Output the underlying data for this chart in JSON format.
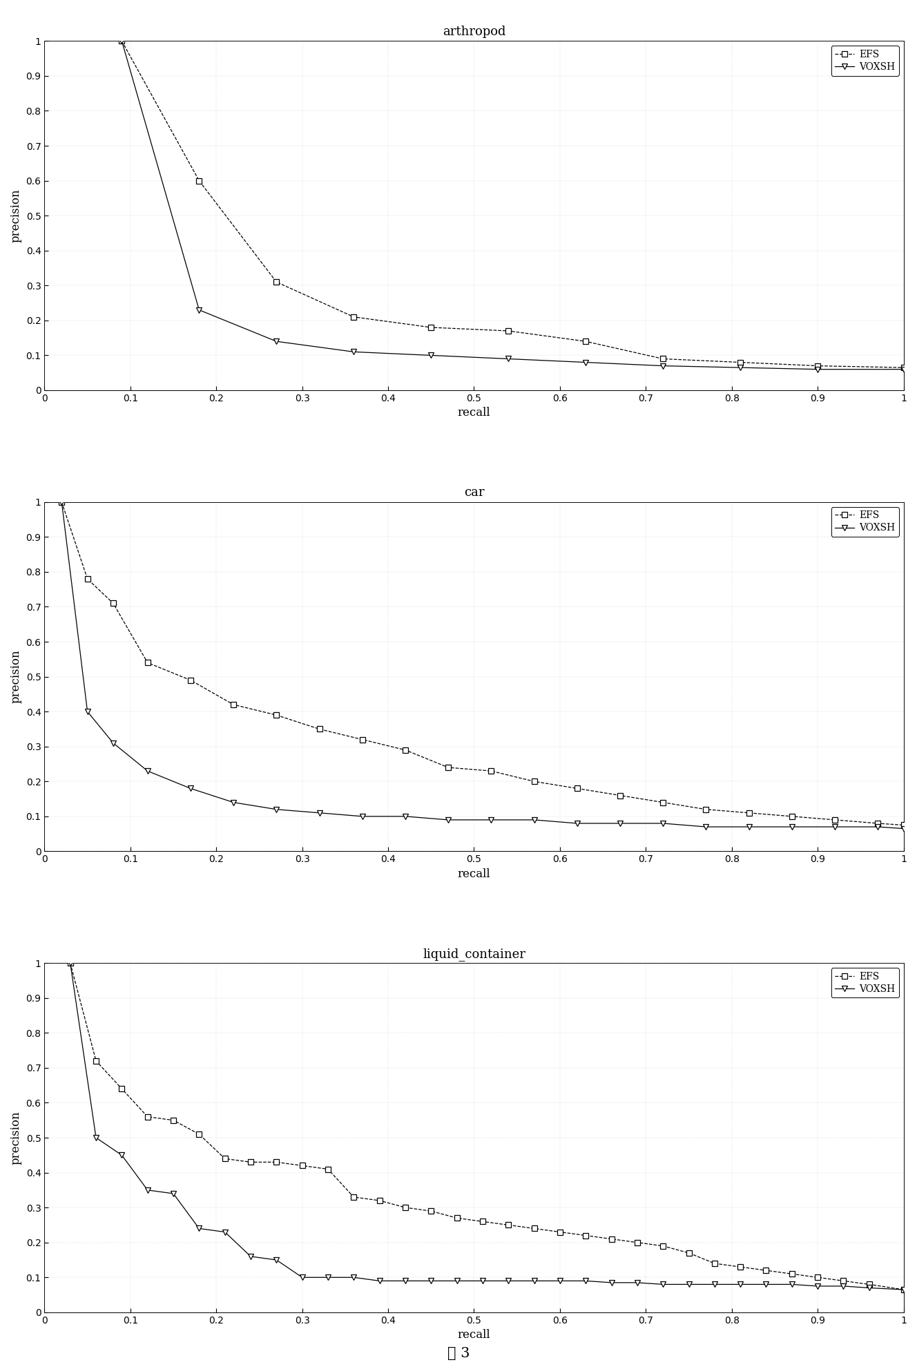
{
  "charts": [
    {
      "title": "arthropod",
      "EFS_x": [
        0.09,
        0.18,
        0.27,
        0.36,
        0.45,
        0.54,
        0.63,
        0.72,
        0.81,
        0.9,
        1.0
      ],
      "EFS_y": [
        1.0,
        0.6,
        0.31,
        0.21,
        0.18,
        0.17,
        0.14,
        0.09,
        0.08,
        0.07,
        0.065
      ],
      "VOXSH_x": [
        0.09,
        0.18,
        0.27,
        0.36,
        0.45,
        0.54,
        0.63,
        0.72,
        0.81,
        0.9,
        1.0
      ],
      "VOXSH_y": [
        1.0,
        0.23,
        0.14,
        0.11,
        0.1,
        0.09,
        0.08,
        0.07,
        0.065,
        0.06,
        0.06
      ]
    },
    {
      "title": "car",
      "EFS_x": [
        0.02,
        0.05,
        0.08,
        0.12,
        0.17,
        0.22,
        0.27,
        0.32,
        0.37,
        0.42,
        0.47,
        0.52,
        0.57,
        0.62,
        0.67,
        0.72,
        0.77,
        0.82,
        0.87,
        0.92,
        0.97,
        1.0
      ],
      "EFS_y": [
        1.0,
        0.78,
        0.71,
        0.54,
        0.49,
        0.42,
        0.39,
        0.35,
        0.32,
        0.29,
        0.24,
        0.23,
        0.2,
        0.18,
        0.16,
        0.14,
        0.12,
        0.11,
        0.1,
        0.09,
        0.08,
        0.075
      ],
      "VOXSH_x": [
        0.02,
        0.05,
        0.08,
        0.12,
        0.17,
        0.22,
        0.27,
        0.32,
        0.37,
        0.42,
        0.47,
        0.52,
        0.57,
        0.62,
        0.67,
        0.72,
        0.77,
        0.82,
        0.87,
        0.92,
        0.97,
        1.0
      ],
      "VOXSH_y": [
        1.0,
        0.4,
        0.31,
        0.23,
        0.18,
        0.14,
        0.12,
        0.11,
        0.1,
        0.1,
        0.09,
        0.09,
        0.09,
        0.08,
        0.08,
        0.08,
        0.07,
        0.07,
        0.07,
        0.07,
        0.07,
        0.065
      ]
    },
    {
      "title": "liquid_container",
      "EFS_x": [
        0.03,
        0.06,
        0.09,
        0.12,
        0.15,
        0.18,
        0.21,
        0.24,
        0.27,
        0.3,
        0.33,
        0.36,
        0.39,
        0.42,
        0.45,
        0.48,
        0.51,
        0.54,
        0.57,
        0.6,
        0.63,
        0.66,
        0.69,
        0.72,
        0.75,
        0.78,
        0.81,
        0.84,
        0.87,
        0.9,
        0.93,
        0.96,
        1.0
      ],
      "EFS_y": [
        1.0,
        0.72,
        0.64,
        0.56,
        0.55,
        0.51,
        0.44,
        0.43,
        0.43,
        0.42,
        0.41,
        0.33,
        0.32,
        0.3,
        0.29,
        0.27,
        0.26,
        0.25,
        0.24,
        0.23,
        0.22,
        0.21,
        0.2,
        0.19,
        0.17,
        0.14,
        0.13,
        0.12,
        0.11,
        0.1,
        0.09,
        0.08,
        0.065
      ],
      "VOXSH_x": [
        0.03,
        0.06,
        0.09,
        0.12,
        0.15,
        0.18,
        0.21,
        0.24,
        0.27,
        0.3,
        0.33,
        0.36,
        0.39,
        0.42,
        0.45,
        0.48,
        0.51,
        0.54,
        0.57,
        0.6,
        0.63,
        0.66,
        0.69,
        0.72,
        0.75,
        0.78,
        0.81,
        0.84,
        0.87,
        0.9,
        0.93,
        0.96,
        1.0
      ],
      "VOXSH_y": [
        1.0,
        0.5,
        0.45,
        0.35,
        0.34,
        0.24,
        0.23,
        0.16,
        0.15,
        0.1,
        0.1,
        0.1,
        0.09,
        0.09,
        0.09,
        0.09,
        0.09,
        0.09,
        0.09,
        0.09,
        0.09,
        0.085,
        0.085,
        0.08,
        0.08,
        0.08,
        0.08,
        0.08,
        0.08,
        0.075,
        0.075,
        0.07,
        0.065
      ]
    }
  ],
  "xlabel": "recall",
  "ylabel": "precision",
  "xlim": [
    0,
    1
  ],
  "ylim": [
    0,
    1
  ],
  "xticks": [
    0,
    0.1,
    0.2,
    0.3,
    0.4,
    0.5,
    0.6,
    0.7,
    0.8,
    0.9,
    1
  ],
  "yticks": [
    0,
    0.1,
    0.2,
    0.3,
    0.4,
    0.5,
    0.6,
    0.7,
    0.8,
    0.9,
    1
  ],
  "efs_color": "#000000",
  "voxsh_color": "#000000",
  "efs_linestyle": "--",
  "voxsh_linestyle": "-",
  "efs_marker": "s",
  "voxsh_marker": "v",
  "legend_efs": "EFS",
  "legend_voxsh": "VOXSH",
  "caption": "图 3",
  "bg_color": "#ffffff",
  "title_fontsize": 13,
  "label_fontsize": 12,
  "tick_fontsize": 10,
  "legend_fontsize": 10,
  "caption_fontsize": 15
}
